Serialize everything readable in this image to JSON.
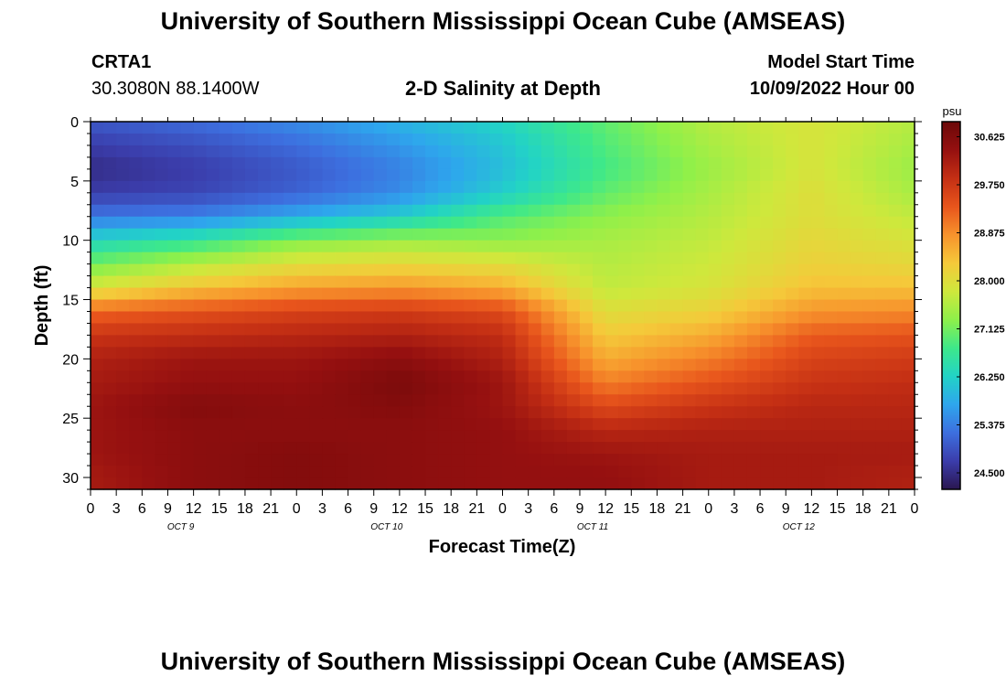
{
  "header": {
    "title": "University of Southern Mississippi Ocean Cube (AMSEAS)",
    "station_id": "CRTA1",
    "station_coords": "30.3080N  88.1400W",
    "subtitle": "2-D Salinity at Depth",
    "model_start_label": "Model Start Time",
    "model_start_value": "10/09/2022 Hour 00"
  },
  "footer": {
    "title": "University of Southern Mississippi Ocean Cube (AMSEAS)"
  },
  "chart_data": {
    "type": "heatmap",
    "title": "2-D Salinity at Depth",
    "xlabel": "Forecast Time(Z)",
    "ylabel": "Depth (ft)",
    "x_tick_labels": [
      "0",
      "3",
      "6",
      "9",
      "12",
      "15",
      "18",
      "21",
      "0",
      "3",
      "6",
      "9",
      "12",
      "15",
      "18",
      "21",
      "0",
      "3",
      "6",
      "9",
      "12",
      "15",
      "18",
      "21",
      "0",
      "3",
      "6",
      "9",
      "12",
      "15",
      "18",
      "21",
      "0"
    ],
    "x_day_labels": [
      "OCT 9",
      "OCT 10",
      "OCT 11",
      "OCT 12"
    ],
    "ylim": [
      0,
      31
    ],
    "y_ticks": [
      0,
      5,
      10,
      15,
      20,
      25,
      30
    ],
    "colorbar": {
      "unit": "psu",
      "vmin": 24.2,
      "vmax": 30.9,
      "tick_values": [
        30.625,
        29.75,
        28.875,
        28.0,
        27.125,
        26.25,
        25.375,
        24.5
      ],
      "tick_labels": [
        "30.625",
        "29.750",
        "28.875",
        "28.000",
        "27.125",
        "26.250",
        "25.375",
        "24.500"
      ],
      "colors": [
        "#2a1650",
        "#3b3dab",
        "#3d6fdf",
        "#2ea6ed",
        "#22d3c6",
        "#3ee88a",
        "#8ef04a",
        "#cfe83c",
        "#f5c93a",
        "#f7922c",
        "#e8551c",
        "#c42f14",
        "#951010",
        "#6b0808"
      ]
    },
    "depth_levels_ft": [
      0,
      2,
      4,
      6,
      8,
      10,
      12,
      14,
      16,
      18,
      20,
      22,
      24,
      26,
      28,
      30
    ],
    "time_hours": [
      0,
      12,
      24,
      36,
      48,
      60,
      72,
      84,
      96
    ],
    "salinity_psu": [
      [
        25.0,
        25.2,
        25.5,
        25.9,
        26.3,
        27.0,
        27.6,
        27.9,
        27.6
      ],
      [
        24.7,
        24.9,
        25.2,
        25.6,
        26.1,
        26.9,
        27.5,
        27.9,
        27.5
      ],
      [
        24.5,
        24.7,
        25.0,
        25.4,
        26.0,
        26.8,
        27.4,
        27.9,
        27.4
      ],
      [
        24.7,
        24.8,
        25.1,
        25.5,
        26.2,
        27.0,
        27.5,
        28.0,
        27.5
      ],
      [
        25.3,
        25.4,
        25.8,
        26.2,
        26.9,
        27.3,
        27.6,
        28.0,
        27.7
      ],
      [
        26.3,
        26.6,
        27.2,
        27.4,
        27.3,
        27.5,
        27.7,
        28.1,
        27.9
      ],
      [
        27.1,
        27.6,
        28.0,
        28.1,
        28.0,
        27.6,
        27.8,
        28.2,
        28.1
      ],
      [
        27.9,
        28.4,
        28.7,
        28.8,
        28.6,
        27.7,
        27.9,
        28.4,
        28.4
      ],
      [
        29.2,
        29.4,
        29.6,
        29.7,
        29.5,
        28.0,
        28.2,
        28.8,
        28.9
      ],
      [
        29.8,
        29.9,
        30.0,
        30.1,
        29.9,
        28.3,
        28.6,
        29.3,
        29.4
      ],
      [
        30.1,
        30.3,
        30.3,
        30.5,
        30.1,
        28.6,
        29.0,
        29.6,
        29.7
      ],
      [
        30.2,
        30.4,
        30.4,
        30.7,
        30.3,
        29.0,
        29.4,
        29.8,
        29.9
      ],
      [
        30.3,
        30.6,
        30.5,
        30.6,
        30.3,
        29.5,
        29.8,
        30.0,
        30.0
      ],
      [
        30.3,
        30.5,
        30.5,
        30.5,
        30.4,
        30.0,
        30.1,
        30.1,
        30.1
      ],
      [
        30.3,
        30.5,
        30.6,
        30.5,
        30.4,
        30.3,
        30.2,
        30.2,
        30.2
      ],
      [
        30.2,
        30.5,
        30.6,
        30.5,
        30.4,
        30.4,
        30.2,
        30.2,
        30.1
      ]
    ]
  }
}
